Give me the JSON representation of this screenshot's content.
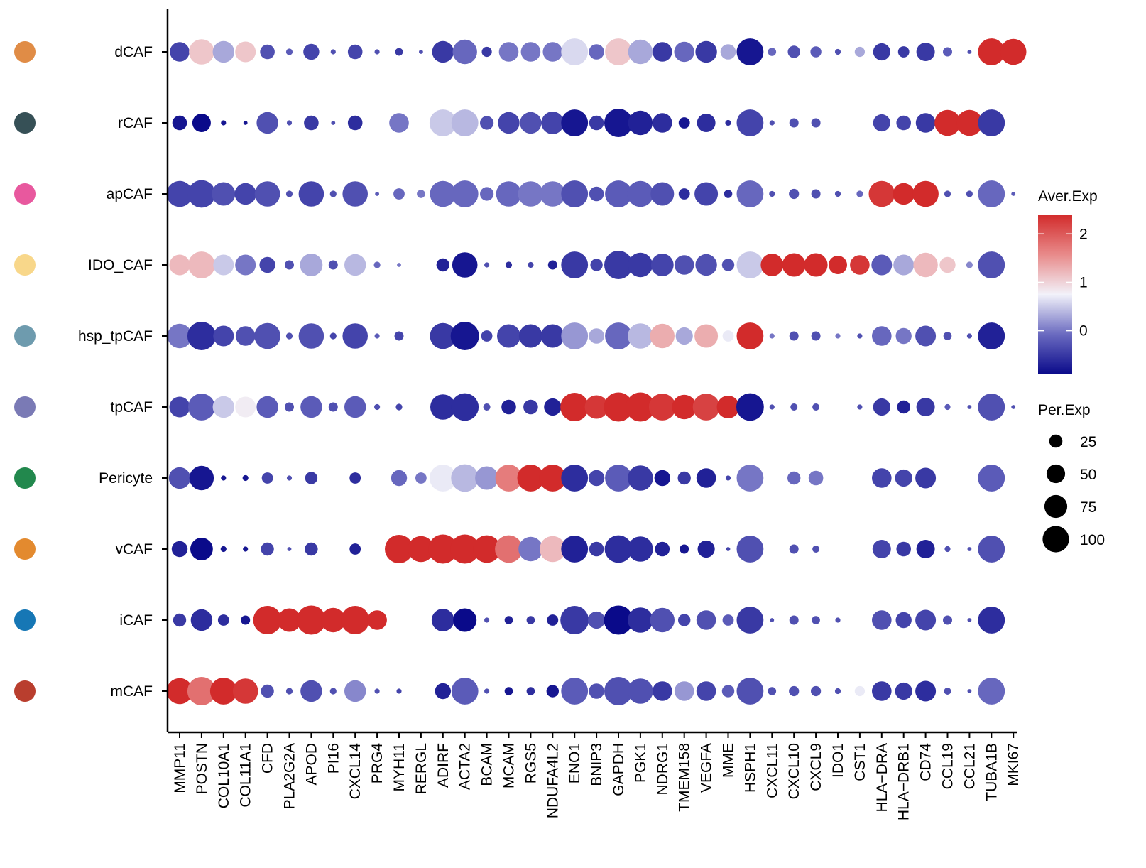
{
  "chart_data": {
    "type": "dotplot",
    "genes": [
      "MMP11",
      "POSTN",
      "COL10A1",
      "COL11A1",
      "CFD",
      "PLA2G2A",
      "APOD",
      "PI16",
      "CXCL14",
      "PRG4",
      "MYH11",
      "RERGL",
      "ADIRF",
      "ACTA2",
      "BCAM",
      "MCAM",
      "RGS5",
      "NDUFA4L2",
      "ENO1",
      "BNIP3",
      "GAPDH",
      "PGK1",
      "NDRG1",
      "TMEM158",
      "VEGFA",
      "MME",
      "HSPH1",
      "CXCL11",
      "CXCL10",
      "CXCL9",
      "IDO1",
      "CST1",
      "HLA−DRA",
      "HLA−DRB1",
      "CD74",
      "CCL19",
      "CCL21",
      "TUBA1B",
      "MKI67"
    ],
    "clusters": [
      {
        "name": "dCAF",
        "color": "#E08C46",
        "pct": [
          45,
          75,
          55,
          50,
          25,
          5,
          30,
          3,
          25,
          3,
          7,
          2,
          55,
          70,
          12,
          45,
          45,
          45,
          85,
          28,
          85,
          70,
          45,
          48,
          55,
          28,
          85,
          8,
          18,
          14,
          4,
          12,
          35,
          15,
          40,
          10,
          2,
          85,
          80
        ],
        "exp": [
          -0.4,
          1.1,
          0.3,
          1.1,
          -0.3,
          -0.2,
          -0.4,
          -0.3,
          -0.4,
          -0.3,
          -0.5,
          -0.3,
          -0.5,
          -0.1,
          -0.5,
          0.0,
          0.0,
          0.0,
          0.6,
          -0.1,
          1.1,
          0.3,
          -0.5,
          -0.1,
          -0.5,
          0.3,
          -0.8,
          -0.1,
          -0.3,
          -0.2,
          -0.3,
          0.3,
          -0.5,
          -0.5,
          -0.5,
          -0.2,
          -0.3,
          2.4,
          2.4
        ]
      },
      {
        "name": "rCAF",
        "color": "#365056",
        "pct": [
          25,
          40,
          3,
          2,
          55,
          3,
          25,
          2,
          25,
          0,
          45,
          0,
          85,
          85,
          22,
          55,
          55,
          60,
          85,
          25,
          95,
          70,
          45,
          15,
          40,
          4,
          85,
          3,
          10,
          10,
          0,
          0,
          35,
          25,
          45,
          80,
          80,
          85,
          0
        ],
        "exp": [
          -0.8,
          -0.9,
          -0.8,
          -0.8,
          -0.3,
          -0.3,
          -0.5,
          -0.3,
          -0.6,
          0,
          0.0,
          0,
          0.5,
          0.4,
          -0.3,
          -0.4,
          -0.3,
          -0.4,
          -0.8,
          -0.5,
          -0.8,
          -0.7,
          -0.6,
          -0.8,
          -0.6,
          -0.6,
          -0.4,
          -0.3,
          -0.3,
          -0.3,
          0,
          0,
          -0.4,
          -0.4,
          -0.5,
          2.4,
          2.4,
          -0.5,
          0
        ]
      },
      {
        "name": "apCAF",
        "color": "#E8589E",
        "pct": [
          80,
          90,
          65,
          55,
          75,
          5,
          75,
          5,
          75,
          2,
          15,
          8,
          80,
          85,
          22,
          75,
          75,
          75,
          85,
          25,
          85,
          80,
          65,
          15,
          65,
          8,
          85,
          4,
          12,
          10,
          4,
          5,
          80,
          55,
          80,
          5,
          5,
          85,
          2
        ],
        "exp": [
          -0.4,
          -0.4,
          -0.3,
          -0.4,
          -0.3,
          -0.3,
          -0.4,
          -0.3,
          -0.3,
          -0.2,
          -0.1,
          0.0,
          -0.1,
          -0.1,
          -0.1,
          -0.1,
          0.0,
          0.0,
          -0.3,
          -0.3,
          -0.2,
          -0.2,
          -0.3,
          -0.6,
          -0.4,
          -0.6,
          -0.1,
          -0.3,
          -0.3,
          -0.3,
          -0.3,
          -0.1,
          2.3,
          2.4,
          2.4,
          -0.3,
          -0.3,
          -0.1,
          -0.2
        ]
      },
      {
        "name": "IDO_CAF",
        "color": "#F8D78A",
        "pct": [
          50,
          85,
          50,
          50,
          30,
          10,
          60,
          10,
          55,
          5,
          2,
          0,
          20,
          75,
          3,
          5,
          4,
          10,
          85,
          18,
          95,
          70,
          60,
          45,
          55,
          18,
          85,
          60,
          65,
          65,
          40,
          45,
          50,
          50,
          70,
          30,
          5,
          85,
          0
        ],
        "exp": [
          1.2,
          1.2,
          0.5,
          0.0,
          -0.4,
          -0.3,
          0.3,
          -0.3,
          0.4,
          -0.1,
          0,
          0,
          -0.7,
          -0.8,
          -0.3,
          -0.6,
          -0.4,
          -0.7,
          -0.5,
          -0.4,
          -0.5,
          -0.5,
          -0.4,
          -0.3,
          -0.3,
          -0.3,
          0.5,
          2.4,
          2.4,
          2.4,
          2.4,
          2.3,
          -0.2,
          0.3,
          1.2,
          1.1,
          0.1,
          -0.3,
          0
        ]
      },
      {
        "name": "hsp_tpCAF",
        "color": "#6E9BAE",
        "pct": [
          70,
          95,
          50,
          45,
          80,
          5,
          75,
          5,
          75,
          3,
          10,
          0,
          80,
          95,
          15,
          65,
          65,
          65,
          85,
          28,
          85,
          75,
          70,
          35,
          65,
          15,
          85,
          3,
          10,
          10,
          3,
          3,
          45,
          30,
          50,
          8,
          3,
          85,
          0
        ],
        "exp": [
          0.0,
          -0.6,
          -0.4,
          -0.3,
          -0.3,
          -0.3,
          -0.3,
          -0.4,
          -0.4,
          -0.2,
          -0.4,
          0,
          -0.5,
          -0.8,
          -0.4,
          -0.4,
          -0.5,
          -0.5,
          0.2,
          0.3,
          -0.1,
          0.4,
          1.3,
          0.3,
          1.3,
          0.7,
          2.4,
          0,
          -0.3,
          -0.3,
          0,
          -0.3,
          -0.1,
          0.0,
          -0.3,
          -0.3,
          -0.3,
          -0.7,
          0
        ]
      },
      {
        "name": "tpCAF",
        "color": "#7A7AB5",
        "pct": [
          50,
          85,
          55,
          50,
          55,
          10,
          55,
          10,
          55,
          4,
          5,
          0,
          75,
          90,
          6,
          25,
          25,
          35,
          95,
          65,
          100,
          100,
          85,
          70,
          85,
          60,
          90,
          3,
          6,
          6,
          0,
          3,
          35,
          20,
          40,
          4,
          2,
          85,
          2
        ],
        "exp": [
          -0.4,
          -0.2,
          0.5,
          0.8,
          -0.2,
          -0.3,
          -0.2,
          -0.3,
          -0.2,
          -0.3,
          -0.4,
          0,
          -0.6,
          -0.6,
          -0.3,
          -0.7,
          -0.5,
          -0.7,
          2.4,
          2.3,
          2.4,
          2.4,
          2.3,
          2.4,
          2.2,
          2.4,
          -0.8,
          -0.3,
          -0.3,
          -0.3,
          0,
          -0.3,
          -0.5,
          -0.7,
          -0.5,
          -0.2,
          -0.3,
          -0.3,
          -0.3
        ]
      },
      {
        "name": "Pericyte",
        "color": "#22884D",
        "pct": [
          55,
          70,
          3,
          4,
          15,
          3,
          18,
          0,
          15,
          0,
          30,
          15,
          85,
          90,
          65,
          85,
          85,
          85,
          85,
          30,
          85,
          75,
          30,
          20,
          45,
          3,
          85,
          0,
          20,
          25,
          0,
          0,
          45,
          35,
          50,
          0,
          0,
          85,
          0
        ],
        "exp": [
          -0.3,
          -0.8,
          -0.8,
          -0.8,
          -0.4,
          -0.3,
          -0.5,
          0,
          -0.6,
          0,
          -0.1,
          0.0,
          0.7,
          0.4,
          0.2,
          1.7,
          2.4,
          2.4,
          -0.6,
          -0.4,
          -0.2,
          -0.5,
          -0.8,
          -0.5,
          -0.7,
          -0.4,
          0.0,
          0,
          -0.1,
          0.0,
          0,
          0,
          -0.4,
          -0.4,
          -0.5,
          0,
          0,
          -0.2,
          0
        ]
      },
      {
        "name": "vCAF",
        "color": "#E38A2F",
        "pct": [
          30,
          60,
          4,
          3,
          20,
          2,
          20,
          0,
          15,
          0,
          95,
          80,
          100,
          100,
          90,
          90,
          70,
          80,
          85,
          25,
          90,
          75,
          25,
          10,
          35,
          2,
          85,
          0,
          10,
          6,
          0,
          0,
          40,
          25,
          40,
          4,
          2,
          85,
          0
        ],
        "exp": [
          -0.7,
          -0.9,
          -0.8,
          -0.8,
          -0.4,
          -0.3,
          -0.5,
          0,
          -0.7,
          0,
          2.4,
          2.4,
          2.4,
          2.4,
          2.4,
          1.8,
          0.0,
          1.2,
          -0.7,
          -0.5,
          -0.6,
          -0.6,
          -0.7,
          -0.8,
          -0.7,
          -0.4,
          -0.3,
          0,
          -0.3,
          -0.3,
          0,
          0,
          -0.4,
          -0.5,
          -0.7,
          -0.3,
          -0.3,
          -0.3,
          0
        ]
      },
      {
        "name": "iCAF",
        "color": "#1677B5",
        "pct": [
          20,
          55,
          15,
          10,
          95,
          65,
          100,
          70,
          95,
          45,
          0,
          0,
          60,
          65,
          3,
          8,
          8,
          15,
          95,
          35,
          100,
          75,
          70,
          18,
          45,
          15,
          85,
          2,
          10,
          8,
          3,
          0,
          45,
          30,
          50,
          10,
          2,
          85,
          0
        ],
        "exp": [
          -0.5,
          -0.6,
          -0.6,
          -0.8,
          2.4,
          2.4,
          2.4,
          2.4,
          2.4,
          2.4,
          0,
          0,
          -0.6,
          -0.9,
          -0.3,
          -0.7,
          -0.5,
          -0.7,
          -0.5,
          -0.3,
          -0.9,
          -0.6,
          -0.3,
          -0.4,
          -0.3,
          -0.2,
          -0.5,
          -0.3,
          -0.3,
          -0.3,
          -0.3,
          0,
          -0.3,
          -0.4,
          -0.4,
          -0.3,
          -0.3,
          -0.6,
          0
        ]
      },
      {
        "name": "mCAF",
        "color": "#B93E2E",
        "pct": [
          80,
          95,
          85,
          75,
          20,
          5,
          55,
          5,
          55,
          3,
          3,
          0,
          30,
          85,
          3,
          8,
          8,
          18,
          85,
          28,
          95,
          75,
          45,
          45,
          45,
          18,
          85,
          8,
          12,
          12,
          4,
          12,
          45,
          35,
          50,
          6,
          2,
          85,
          0
        ],
        "exp": [
          2.4,
          1.8,
          2.4,
          2.3,
          -0.3,
          -0.3,
          -0.3,
          -0.3,
          0.1,
          -0.3,
          -0.4,
          0,
          -0.7,
          -0.2,
          -0.3,
          -0.8,
          -0.6,
          -0.8,
          -0.2,
          -0.3,
          -0.3,
          -0.3,
          -0.5,
          0.2,
          -0.4,
          -0.2,
          -0.3,
          -0.3,
          -0.3,
          -0.3,
          -0.3,
          0.7,
          -0.5,
          -0.5,
          -0.6,
          -0.3,
          -0.3,
          -0.1,
          0
        ]
      }
    ],
    "color_legend": {
      "title": "Aver.Exp",
      "ticks": [
        2,
        1,
        0
      ],
      "domain": [
        -0.9,
        2.4
      ],
      "stops": [
        "#0A0A8A",
        "#6A6AC0",
        "#F2F2FA",
        "#E88A8A",
        "#D22B2B"
      ]
    },
    "size_legend": {
      "title": "Per.Exp",
      "values": [
        25,
        50,
        75,
        100
      ],
      "labels": [
        "25",
        "50",
        "75",
        "100"
      ]
    },
    "xlabel": "",
    "ylabel": "",
    "title": ""
  }
}
